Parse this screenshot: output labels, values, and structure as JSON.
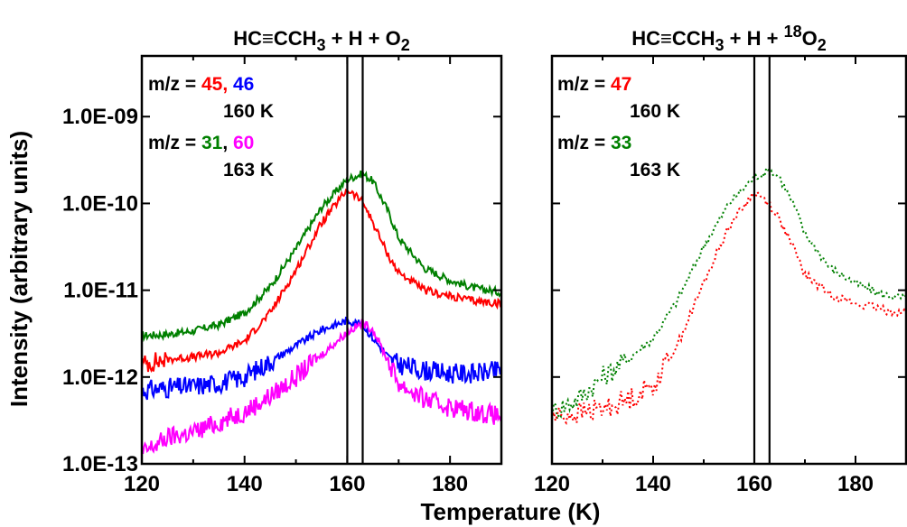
{
  "y_axis_label": "Intensity (arbitrary units)",
  "x_axis_label": "Temperature (K)",
  "chart_data": [
    {
      "type": "line",
      "title_parts": {
        "prefix": "HC≡CCH",
        "sub1": "3",
        "middle": " + H + O",
        "sub2": "2"
      },
      "xlim": [
        120,
        190
      ],
      "ylim": [
        1e-13,
        5e-09
      ],
      "yscale": "log",
      "x_ticks": [
        120,
        140,
        160,
        180
      ],
      "y_ticks": [
        {
          "value": 1e-13,
          "label": "1.0E-13"
        },
        {
          "value": 1e-12,
          "label": "1.0E-12"
        },
        {
          "value": 1e-11,
          "label": "1.0E-11"
        },
        {
          "value": 1e-10,
          "label": "1.0E-10"
        },
        {
          "value": 1e-09,
          "label": "1.0E-09"
        }
      ],
      "vlines": [
        160,
        163
      ],
      "annotations": [
        {
          "parts": [
            {
              "text": "m/z = ",
              "color": "#000000"
            },
            {
              "text": "45",
              "color": "#ff0000"
            },
            {
              "text": ", ",
              "color": "#ff0000"
            },
            {
              "text": "46",
              "color": "#0000ff"
            }
          ]
        },
        {
          "parts": [
            {
              "text": "160 K",
              "color": "#000000"
            }
          ]
        },
        {
          "parts": [
            {
              "text": "m/z = ",
              "color": "#000000"
            },
            {
              "text": "31",
              "color": "#008000"
            },
            {
              "text": ", ",
              "color": "#000000"
            },
            {
              "text": "60",
              "color": "#ff00ff"
            }
          ]
        },
        {
          "parts": [
            {
              "text": "163 K",
              "color": "#000000"
            }
          ]
        }
      ],
      "series": [
        {
          "mz": 31,
          "color": "#008000",
          "style": "solid",
          "peak_x": 163,
          "x": [
            120,
            125,
            130,
            135,
            140,
            145,
            150,
            155,
            160,
            163,
            165,
            168,
            170,
            175,
            180,
            185,
            190
          ],
          "y": [
            3e-12,
            3.1e-12,
            3.4e-12,
            4e-12,
            5.5e-12,
            1.1e-11,
            3e-11,
            9e-11,
            1.9e-10,
            2.2e-10,
            1.8e-10,
            8e-11,
            4e-11,
            1.8e-11,
            1.3e-11,
            1.05e-11,
            9.5e-12
          ]
        },
        {
          "mz": 45,
          "color": "#ff0000",
          "style": "solid",
          "peak_x": 160,
          "x": [
            120,
            125,
            130,
            135,
            140,
            145,
            150,
            155,
            160,
            163,
            165,
            168,
            170,
            175,
            180,
            185,
            190
          ],
          "y": [
            1.4e-12,
            1.6e-12,
            1.7e-12,
            1.9e-12,
            2.6e-12,
            5.5e-12,
            1.7e-11,
            6e-11,
            1.45e-10,
            1.05e-10,
            6e-11,
            2.5e-11,
            1.6e-11,
            1e-11,
            8.5e-12,
            7.5e-12,
            7e-12
          ]
        },
        {
          "mz": 46,
          "color": "#0000ff",
          "style": "solid",
          "peak_x": 160,
          "x": [
            120,
            125,
            130,
            135,
            140,
            145,
            150,
            155,
            160,
            163,
            165,
            168,
            170,
            175,
            180,
            185,
            190
          ],
          "y": [
            7e-13,
            7.5e-13,
            7.8e-13,
            8.5e-13,
            1e-12,
            1.5e-12,
            2.3e-12,
            3.5e-12,
            4.5e-12,
            4e-12,
            2.8e-12,
            1.7e-12,
            1.4e-12,
            1.2e-12,
            1.1e-12,
            1.1e-12,
            1.2e-12
          ]
        },
        {
          "mz": 60,
          "color": "#ff00ff",
          "style": "solid",
          "peak_x": 163,
          "x": [
            120,
            125,
            130,
            135,
            140,
            145,
            150,
            155,
            160,
            163,
            165,
            168,
            170,
            175,
            180,
            185,
            190
          ],
          "y": [
            1.3e-13,
            2e-13,
            2.3e-13,
            3e-13,
            4e-13,
            6e-13,
            1e-12,
            1.8e-12,
            3.3e-12,
            4.2e-12,
            3.5e-12,
            1.5e-12,
            8.5e-13,
            5.5e-13,
            4.5e-13,
            4e-13,
            3.5e-13
          ]
        }
      ]
    },
    {
      "type": "line",
      "title_parts": {
        "prefix": "HC≡CCH",
        "sub1": "3",
        "middle": " + H + ",
        "sup": "18",
        "tail": "O",
        "sub2": "2"
      },
      "xlim": [
        120,
        190
      ],
      "ylim": [
        1e-13,
        5e-09
      ],
      "yscale": "log",
      "x_ticks": [
        120,
        140,
        160,
        180
      ],
      "y_ticks": [],
      "vlines": [
        160,
        163
      ],
      "annotations": [
        {
          "parts": [
            {
              "text": "m/z = ",
              "color": "#000000"
            },
            {
              "text": "47",
              "color": "#ff0000"
            }
          ]
        },
        {
          "parts": [
            {
              "text": "160 K",
              "color": "#000000"
            }
          ]
        },
        {
          "parts": [
            {
              "text": "m/z = ",
              "color": "#000000"
            },
            {
              "text": "33",
              "color": "#008000"
            }
          ]
        },
        {
          "parts": [
            {
              "text": "163 K",
              "color": "#000000"
            }
          ]
        }
      ],
      "series": [
        {
          "mz": 33,
          "color": "#008000",
          "style": "dotted",
          "peak_x": 163,
          "x": [
            120,
            125,
            130,
            135,
            140,
            145,
            150,
            155,
            160,
            163,
            165,
            168,
            170,
            175,
            180,
            185,
            190
          ],
          "y": [
            4e-13,
            5.5e-13,
            1e-12,
            1.6e-12,
            2.8e-12,
            8e-12,
            3.2e-11,
            1e-10,
            2e-10,
            2.4e-10,
            2e-10,
            9e-11,
            4.5e-11,
            1.8e-11,
            1.2e-11,
            9e-12,
            8e-12
          ]
        },
        {
          "mz": 47,
          "color": "#ff0000",
          "style": "dotted",
          "peak_x": 160,
          "x": [
            120,
            125,
            130,
            135,
            140,
            145,
            150,
            155,
            160,
            163,
            165,
            168,
            170,
            175,
            180,
            185,
            190
          ],
          "y": [
            3.5e-13,
            3.8e-13,
            4.3e-13,
            5.5e-13,
            8e-13,
            2.5e-12,
            1.2e-11,
            5.5e-11,
            1.35e-10,
            1e-10,
            6.5e-11,
            2.8e-11,
            1.5e-11,
            9e-12,
            7e-12,
            6e-12,
            5.5e-12
          ]
        }
      ]
    }
  ]
}
